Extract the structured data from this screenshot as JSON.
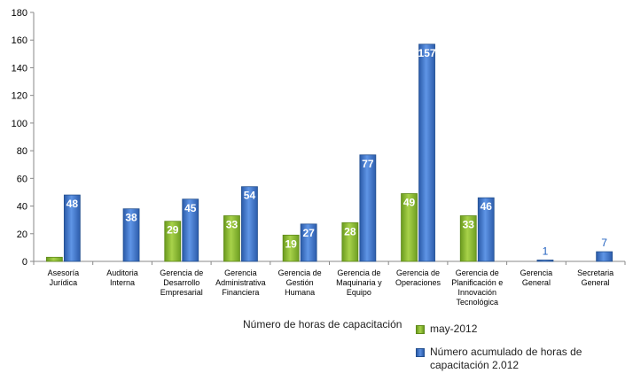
{
  "chart_data": {
    "type": "bar",
    "categories": [
      "Asesoría Jurídica",
      "Auditoria Interna",
      "Gerencia de Desarrollo Empresarial",
      "Gerencia Administrativa Financiera",
      "Gerencia de Gestión Humana",
      "Gerencia de Maquinaria y Equipo",
      "Gerencia de Operaciones",
      "Gerencia de Planificación e Innovación Tecnológica",
      "Gerencia General",
      "Secretaria General"
    ],
    "category_lines": [
      [
        "Asesoría",
        "Jurídica"
      ],
      [
        "Auditoria",
        "Interna"
      ],
      [
        "Gerencia de",
        "Desarrollo",
        "Empresarial"
      ],
      [
        "Gerencia",
        "Administrativa",
        "Financiera"
      ],
      [
        "Gerencia de",
        "Gestión",
        "Humana"
      ],
      [
        "Gerencia de",
        "Maquinaria y",
        "Equipo"
      ],
      [
        "Gerencia de",
        "Operaciones"
      ],
      [
        "Gerencia de",
        "Planificación e",
        "Innovación",
        "Tecnológica"
      ],
      [
        "Gerencia",
        "General"
      ],
      [
        "Secretaria",
        "General"
      ]
    ],
    "series": [
      {
        "name": "may-2012",
        "color": "#8dc03f",
        "values": [
          3,
          0,
          29,
          33,
          19,
          28,
          49,
          33,
          0,
          0
        ],
        "labels": [
          "",
          "",
          "29",
          "33",
          "19",
          "28",
          "49",
          "33",
          "",
          ""
        ]
      },
      {
        "name": "Número acumulado de horas de capacitación 2.012",
        "color": "#3f7fd8",
        "values": [
          48,
          38,
          45,
          54,
          27,
          77,
          157,
          46,
          1,
          7
        ],
        "labels": [
          "48",
          "38",
          "45",
          "54",
          "27",
          "77",
          "157",
          "46",
          "1",
          "7"
        ]
      }
    ],
    "ylim": [
      0,
      180
    ],
    "yticks": [
      "0",
      "20",
      "40",
      "60",
      "80",
      "100",
      "120",
      "140",
      "160",
      "180"
    ],
    "grid": false,
    "legend_position": "bottom-right"
  },
  "legend": {
    "title": "Número de horas de capacitación",
    "item1": "may-2012",
    "item2": "Número acumulado de horas de capacitación 2.012"
  }
}
